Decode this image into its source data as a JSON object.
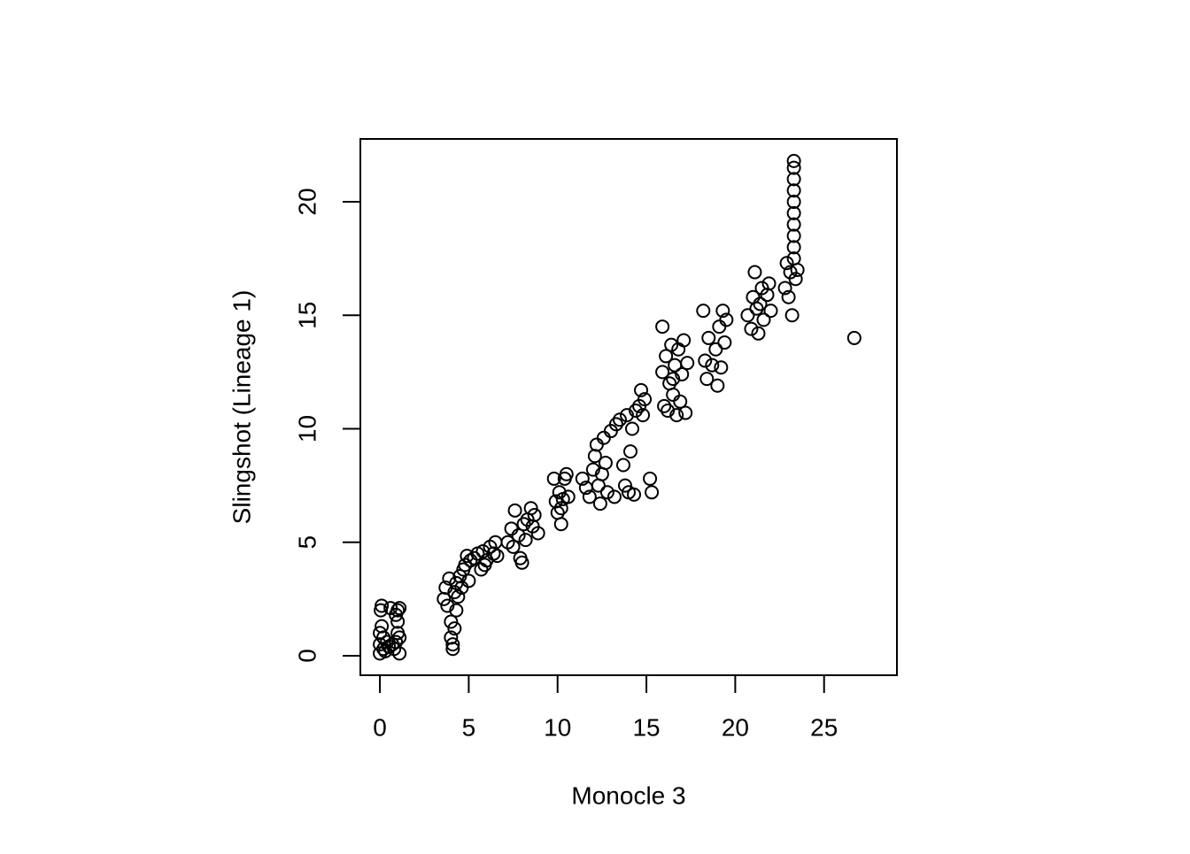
{
  "chart_data": {
    "type": "scatter",
    "x_label": "Monocle 3",
    "y_label": "Slingshot (Lineage 1)",
    "color": "#000000",
    "x": [
      0,
      0,
      0,
      0.1,
      0.1,
      0.05,
      0.2,
      0.3,
      0.5,
      0.6,
      0.7,
      0.8,
      0.9,
      1.0,
      1.0,
      1.0,
      1.1,
      1.1,
      1.1,
      0.9,
      0.4,
      0.2,
      3.6,
      3.7,
      3.8,
      3.9,
      4.0,
      4.0,
      4.1,
      4.1,
      4.2,
      4.2,
      4.3,
      4.4,
      4.5,
      4.6,
      4.7,
      4.8,
      4.9,
      5.0,
      5.1,
      4.3,
      5.3,
      5.5,
      5.7,
      5.8,
      6.0,
      6.2,
      6.4,
      6.5,
      6.6,
      5.9,
      7.2,
      7.4,
      7.5,
      7.6,
      7.8,
      7.9,
      8.0,
      8.1,
      8.3,
      8.5,
      8.7,
      8.9,
      8.6,
      8.2,
      9.8,
      9.9,
      10.0,
      10.1,
      10.2,
      10.3,
      10.4,
      10.5,
      10.6,
      10.2,
      11.4,
      11.6,
      11.8,
      12.0,
      12.1,
      12.2,
      12.3,
      12.4,
      12.5,
      12.6,
      12.8,
      13.0,
      13.2,
      13.3,
      13.5,
      13.7,
      13.8,
      13.9,
      14.0,
      14.1,
      14.2,
      14.3,
      14.4,
      14.6,
      14.7,
      14.8,
      14.9,
      15.2,
      15.3,
      12.7,
      15.9,
      15.9,
      16.0,
      16.1,
      16.2,
      16.3,
      16.4,
      16.5,
      16.6,
      16.7,
      16.8,
      16.9,
      17.0,
      17.1,
      17.2,
      17.3,
      16.5,
      18.2,
      18.3,
      18.4,
      18.5,
      18.7,
      18.9,
      19.0,
      19.1,
      19.3,
      19.4,
      19.5,
      19.2,
      20.7,
      20.9,
      21.0,
      21.1,
      21.3,
      21.4,
      21.5,
      21.6,
      21.8,
      21.9,
      22.0,
      21.2,
      22.8,
      22.9,
      23.0,
      23.1,
      23.2,
      23.3,
      23.3,
      23.3,
      23.3,
      23.3,
      23.3,
      23.4,
      23.5,
      23.3,
      23.3,
      23.3,
      23.3,
      26.7
    ],
    "values": [
      0.1,
      0.5,
      1,
      1.3,
      2.2,
      2.0,
      0.3,
      0.2,
      0.4,
      2.1,
      0.5,
      0.3,
      0.6,
      1.0,
      1.5,
      2.0,
      2.1,
      0.8,
      0.1,
      1.8,
      0.6,
      0.8,
      2.5,
      3.0,
      2.2,
      3.4,
      1.5,
      0.8,
      0.3,
      0.5,
      1.2,
      2.8,
      3.2,
      2.6,
      3.5,
      3.0,
      3.8,
      4.0,
      4.4,
      3.3,
      4.2,
      2.0,
      4.3,
      4.5,
      3.8,
      4.6,
      4.2,
      4.8,
      4.5,
      5.0,
      4.4,
      4.0,
      5.0,
      5.6,
      4.8,
      6.4,
      5.3,
      4.3,
      4.1,
      5.8,
      6.0,
      6.5,
      6.2,
      5.4,
      5.7,
      5.1,
      7.8,
      6.8,
      6.3,
      7.2,
      5.8,
      6.9,
      7.8,
      8.0,
      7.0,
      6.5,
      7.8,
      7.4,
      7.0,
      8.2,
      8.8,
      9.3,
      7.5,
      6.7,
      8.0,
      9.6,
      7.2,
      9.9,
      7.0,
      10.2,
      10.4,
      8.4,
      7.5,
      10.6,
      7.2,
      9.0,
      10.0,
      7.1,
      10.8,
      11.0,
      11.7,
      10.6,
      11.3,
      7.8,
      7.2,
      8.5,
      14.5,
      12.5,
      11.0,
      13.2,
      10.8,
      12.0,
      13.7,
      11.5,
      12.8,
      10.6,
      13.5,
      11.2,
      12.4,
      13.9,
      10.7,
      12.9,
      12.2,
      15.2,
      13.0,
      12.2,
      14.0,
      12.8,
      13.5,
      11.9,
      14.5,
      15.2,
      13.8,
      14.8,
      12.7,
      15.0,
      14.4,
      15.8,
      16.9,
      14.2,
      15.5,
      16.2,
      14.8,
      15.9,
      16.4,
      15.2,
      15.3,
      16.2,
      17.3,
      15.8,
      16.9,
      15.0,
      17.5,
      18.5,
      19.5,
      20.5,
      21.5,
      21.8,
      16.6,
      17.0,
      19.0,
      20.0,
      21.0,
      18.0,
      14.0
    ],
    "xlim": [
      -1.1,
      29.1
    ],
    "ylim": [
      -0.86,
      22.77
    ],
    "xticks": [
      0,
      5,
      10,
      15,
      20,
      25
    ],
    "yticks": [
      0,
      5,
      10,
      15,
      20
    ]
  }
}
